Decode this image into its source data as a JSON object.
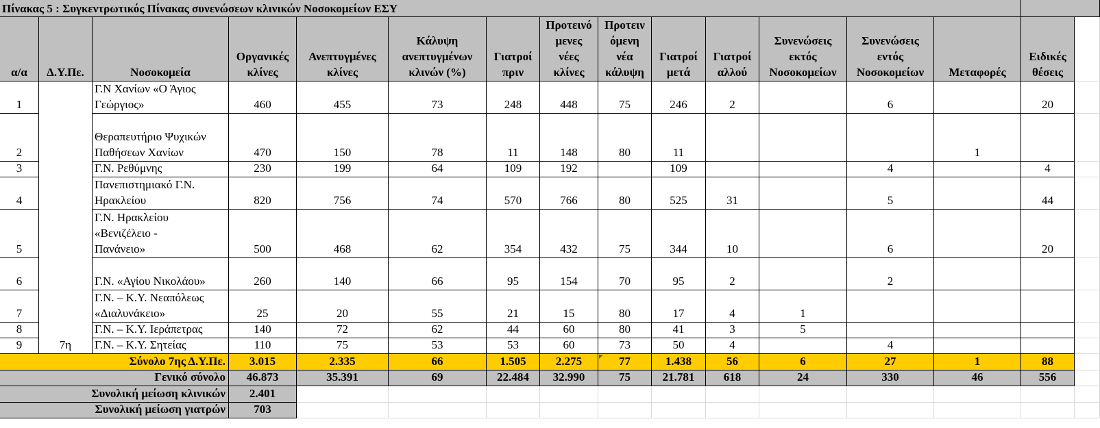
{
  "title": "Πίνακας 5 : Συγκεντρωτικός Πίνακας συνενώσεων κλινικών Νοσοκομείων ΕΣΥ",
  "headers": {
    "aa": "α/α",
    "dype": "Δ.Υ.Πε.",
    "hospitals": "Νοσοκομεία",
    "organic_beds": "Οργανικές\nκλίνες",
    "developed_beds": "Ανεπτυγμένες\nκλίνες",
    "coverage": "Κάλυψη\nανεπτυγμένων\nκλινών (%)",
    "doctors_before": "Γιατροί\nπριν",
    "proposed_beds": "Προτεινό\nμενες\nνέες\nκλίνες",
    "proposed_coverage": "Προτειν\nόμενη\nνέα\nκάλυψη",
    "doctors_after": "Γιατροί\nμετά",
    "doctors_elsewhere": "Γιατροί\nαλλού",
    "mergers_outside": "Συνενώσεις\nεκτός\nΝοσοκομείων",
    "mergers_inside": "Συνενώσεις\nεντός\nΝοσοκομείων",
    "transfers": "Μεταφορές",
    "special_positions": "Ειδικές\nθέσεις"
  },
  "rows": [
    {
      "aa": "1",
      "dype": "",
      "name": "Γ.Ν Χανίων «Ο Άγιος\nΓεώργιος»",
      "organic": "460",
      "developed": "455",
      "coverage": "73",
      "doc_before": "248",
      "prop_beds": "448",
      "prop_cov": "75",
      "doc_after": "246",
      "doc_else": "2",
      "m_out": "",
      "m_in": "6",
      "transfers": "",
      "special": "20"
    },
    {
      "aa": "2",
      "dype": "",
      "name": "Θεραπευτήριο Ψυχικών\nΠαθήσεων Χανίων",
      "organic": "470",
      "developed": "150",
      "coverage": "78",
      "doc_before": "11",
      "prop_beds": "148",
      "prop_cov": "80",
      "doc_after": "11",
      "doc_else": "",
      "m_out": "",
      "m_in": "",
      "transfers": "1",
      "special": ""
    },
    {
      "aa": "3",
      "dype": "",
      "name": "Γ.Ν. Ρεθύμνης",
      "organic": "230",
      "developed": "199",
      "coverage": "64",
      "doc_before": "109",
      "prop_beds": "192",
      "prop_cov": "",
      "doc_after": "109",
      "doc_else": "",
      "m_out": "",
      "m_in": "4",
      "transfers": "",
      "special": "4"
    },
    {
      "aa": "4",
      "dype": "",
      "name": "Πανεπιστημιακό Γ.Ν.\nΗρακλείου",
      "organic": "820",
      "developed": "756",
      "coverage": "74",
      "doc_before": "570",
      "prop_beds": "766",
      "prop_cov": "80",
      "doc_after": "525",
      "doc_else": "31",
      "m_out": "",
      "m_in": "5",
      "transfers": "",
      "special": "44"
    },
    {
      "aa": "5",
      "dype": "",
      "name": "Γ.Ν. Ηρακλείου\n«Βενιζέλειο -\nΠανάνειο»",
      "organic": "500",
      "developed": "468",
      "coverage": "62",
      "doc_before": "354",
      "prop_beds": "432",
      "prop_cov": "75",
      "doc_after": "344",
      "doc_else": "10",
      "m_out": "",
      "m_in": "6",
      "transfers": "",
      "special": "20"
    },
    {
      "aa": "6",
      "dype": "",
      "name": "Γ.Ν. «Αγίου Νικολάου»",
      "organic": "260",
      "developed": "140",
      "coverage": "66",
      "doc_before": "95",
      "prop_beds": "154",
      "prop_cov": "70",
      "doc_after": "95",
      "doc_else": "2",
      "m_out": "",
      "m_in": "2",
      "transfers": "",
      "special": ""
    },
    {
      "aa": "7",
      "dype": "",
      "name": "Γ.Ν. – Κ.Υ. Νεαπόλεως\n«Διαλυνάκειο»",
      "organic": "25",
      "developed": "20",
      "coverage": "55",
      "doc_before": "21",
      "prop_beds": "15",
      "prop_cov": "80",
      "doc_after": "17",
      "doc_else": "4",
      "m_out": "1",
      "m_in": "",
      "transfers": "",
      "special": ""
    },
    {
      "aa": "8",
      "dype": "",
      "name": "Γ.Ν. – Κ.Υ. Ιεράπετρας",
      "organic": "140",
      "developed": "72",
      "coverage": "62",
      "doc_before": "44",
      "prop_beds": "60",
      "prop_cov": "80",
      "doc_after": "41",
      "doc_else": "3",
      "m_out": "5",
      "m_in": "",
      "transfers": "",
      "special": ""
    },
    {
      "aa": "9",
      "dype": "7η",
      "name": "Γ.Ν. – Κ.Υ. Σητείας",
      "organic": "110",
      "developed": "75",
      "coverage": "53",
      "doc_before": "53",
      "prop_beds": "60",
      "prop_cov": "73",
      "doc_after": "50",
      "doc_else": "4",
      "m_out": "",
      "m_in": "4",
      "transfers": "",
      "special": ""
    }
  ],
  "subtotal": {
    "label": "Σύνολο 7ης Δ.Υ.Πε.",
    "organic": "3.015",
    "developed": "2.335",
    "coverage": "66",
    "doc_before": "1.505",
    "prop_beds": "2.275",
    "prop_cov": "77",
    "doc_after": "1.438",
    "doc_else": "56",
    "m_out": "6",
    "m_in": "27",
    "transfers": "1",
    "special": "88"
  },
  "grand_total": {
    "label": "Γενικό σύνολο",
    "organic": "46.873",
    "developed": "35.391",
    "coverage": "69",
    "doc_before": "22.484",
    "prop_beds": "32.990",
    "prop_cov": "75",
    "doc_after": "21.781",
    "doc_else": "618",
    "m_out": "24",
    "m_in": "330",
    "transfers": "46",
    "special": "556"
  },
  "reduction_clinics": {
    "label": "Συνολική μείωση κλινικών",
    "value": "2.401"
  },
  "reduction_doctors": {
    "label": "Συνολική μείωση γιατρών",
    "value": "703"
  },
  "colors": {
    "header_gray": "#c0c0c0",
    "subtotal_yellow": "#ffcc00"
  }
}
